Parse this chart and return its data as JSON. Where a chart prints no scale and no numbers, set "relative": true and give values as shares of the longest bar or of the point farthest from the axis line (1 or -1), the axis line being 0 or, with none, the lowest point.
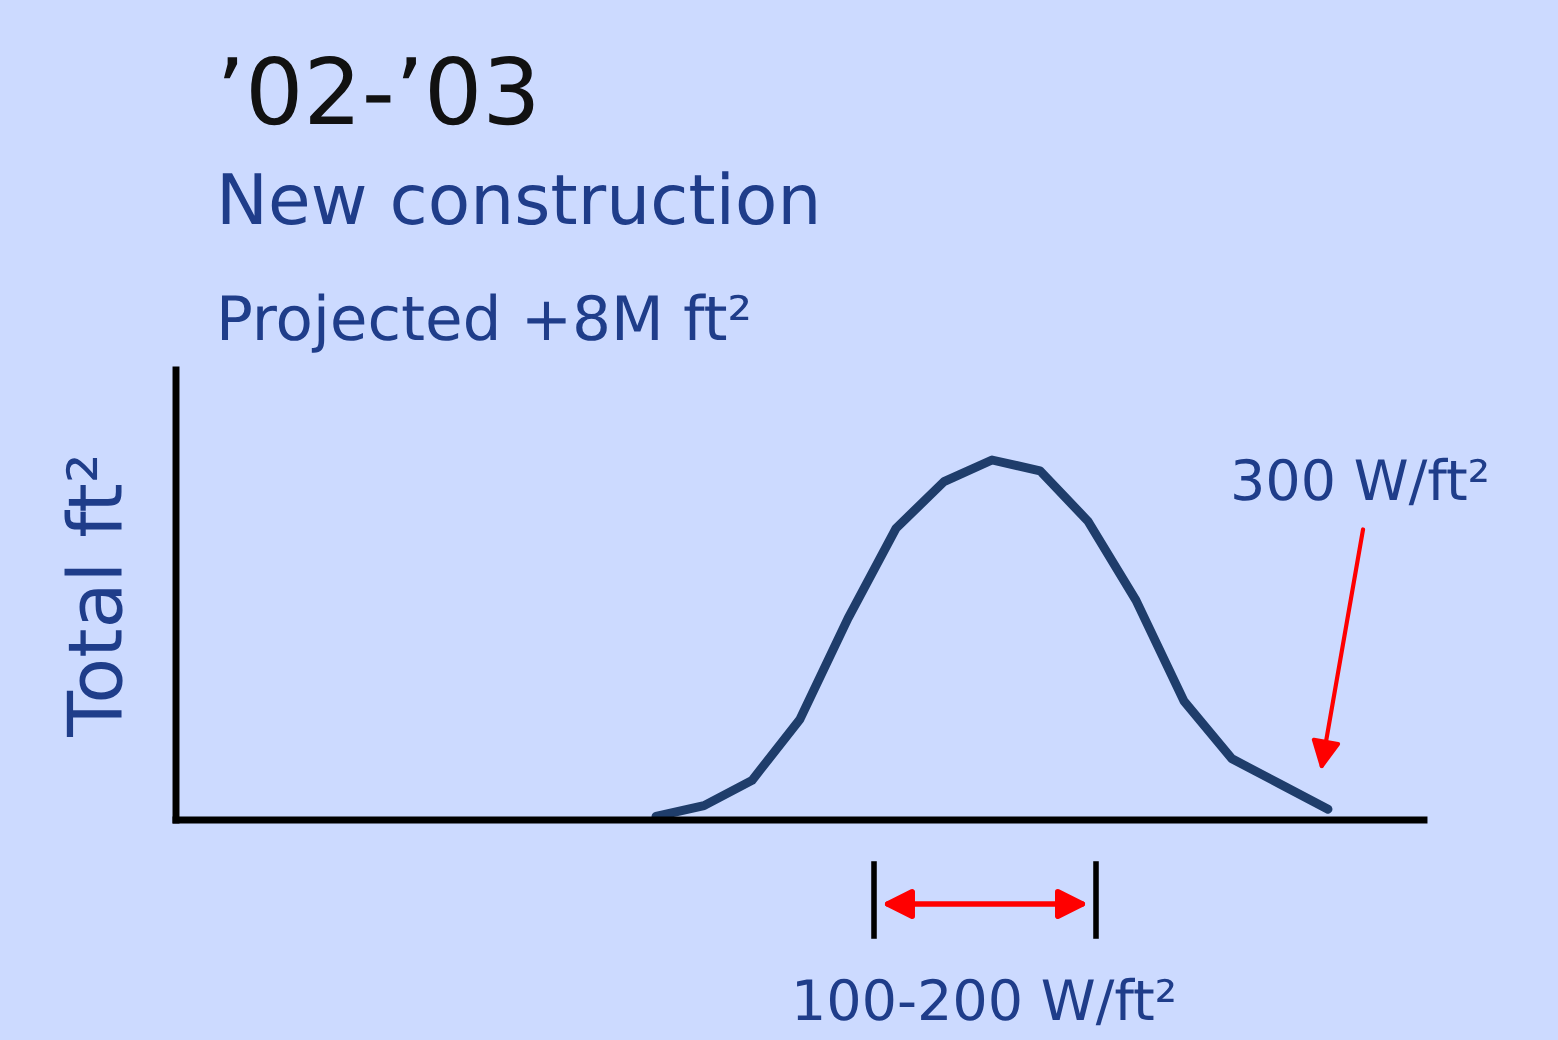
{
  "chart_data": {
    "type": "line",
    "relative": true,
    "title": "’02-’03",
    "subtitle": "New construction",
    "ylabel": "Total ft²",
    "categories": [
      null,
      null,
      null,
      null,
      null,
      null,
      null,
      null,
      null,
      null,
      null,
      null,
      null,
      null,
      null,
      null,
      null,
      null,
      null,
      null,
      null,
      null,
      null,
      null,
      null,
      null,
      null
    ],
    "series": [
      {
        "color": "#1f3d6b",
        "values": [
          null,
          null,
          null,
          null,
          null,
          null,
          null,
          null,
          null,
          null,
          0.01,
          0.04,
          0.11,
          0.28,
          0.56,
          0.81,
          0.94,
          1.0,
          0.97,
          0.83,
          0.61,
          0.33,
          0.17,
          0.1,
          0.03,
          null,
          null
        ]
      }
    ],
    "annotations": [
      "Projected +8M ft²",
      "300 W/ft²",
      "100-200 W/ft²"
    ],
    "marker": "none",
    "line_style": "solid"
  }
}
